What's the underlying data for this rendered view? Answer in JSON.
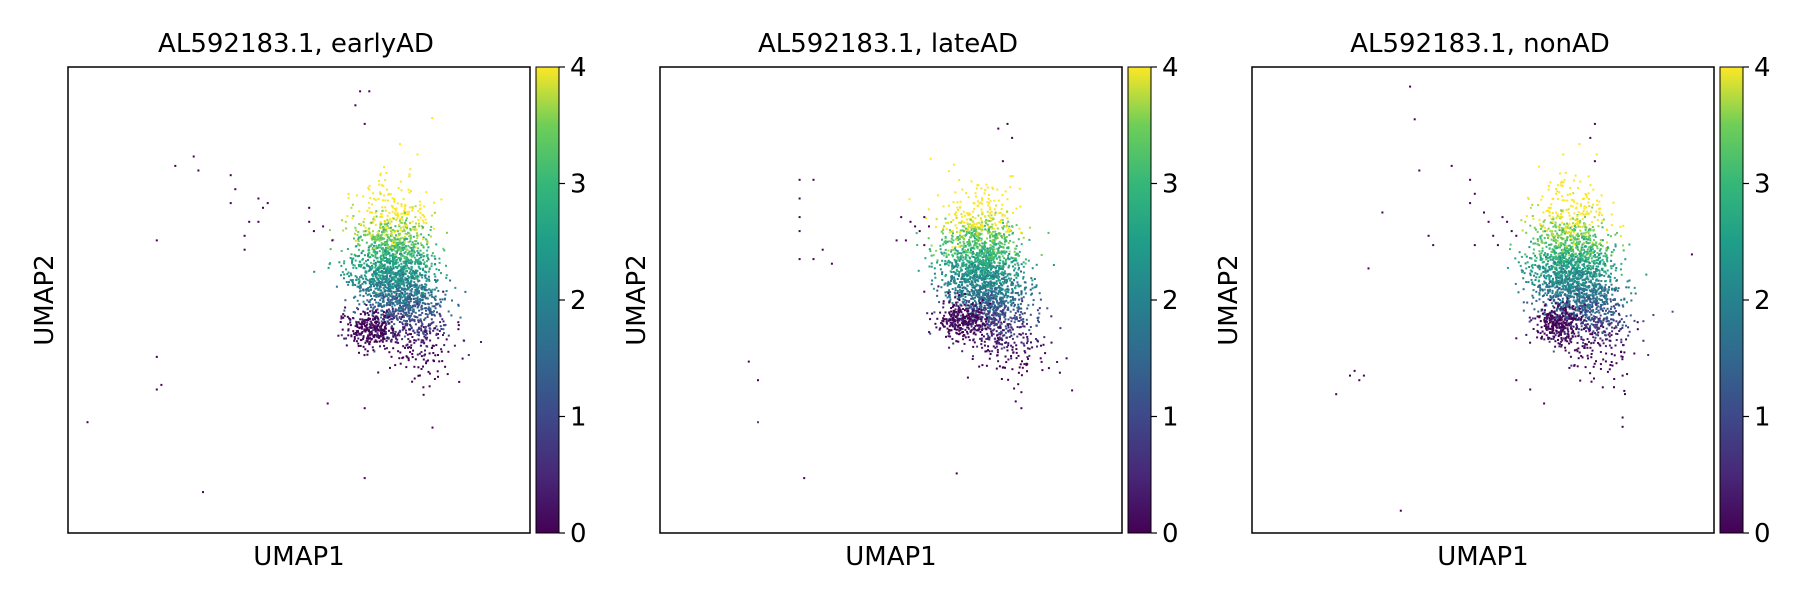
{
  "chart_data": [
    {
      "type": "scatter",
      "title": "AL592183.1, earlyAD",
      "xlabel": "UMAP1",
      "ylabel": "UMAP2",
      "colorbar": {
        "min": 0,
        "max": 4,
        "ticks": [
          "0",
          "1",
          "2",
          "3",
          "4"
        ],
        "colormap": "viridis"
      },
      "main_cluster": {
        "center": [
          0.7,
          0.55
        ],
        "spread": [
          0.045,
          0.08
        ],
        "low_tail": [
          0.62,
          0.42
        ]
      },
      "points": [
        [
          0.04,
          0.24,
          0
        ],
        [
          0.29,
          0.09,
          0
        ],
        [
          0.19,
          0.38,
          0
        ],
        [
          0.19,
          0.63,
          0
        ],
        [
          0.38,
          0.61,
          0
        ],
        [
          0.36,
          0.74,
          0
        ],
        [
          0.35,
          0.71,
          0
        ],
        [
          0.35,
          0.77,
          0
        ],
        [
          0.23,
          0.79,
          0
        ],
        [
          0.27,
          0.81,
          0
        ],
        [
          0.28,
          0.78,
          0
        ],
        [
          0.39,
          0.67,
          0
        ],
        [
          0.41,
          0.67,
          0
        ],
        [
          0.42,
          0.7,
          0
        ],
        [
          0.43,
          0.71,
          0
        ],
        [
          0.41,
          0.72,
          0
        ],
        [
          0.52,
          0.67,
          0
        ],
        [
          0.53,
          0.65,
          0
        ],
        [
          0.55,
          0.66,
          0
        ],
        [
          0.57,
          0.63,
          0
        ],
        [
          0.62,
          0.92,
          0
        ],
        [
          0.63,
          0.95,
          0
        ],
        [
          0.64,
          0.88,
          0
        ],
        [
          0.65,
          0.95,
          0
        ],
        [
          0.81,
          0.52,
          0
        ],
        [
          0.19,
          0.31,
          0
        ],
        [
          0.2,
          0.32,
          0
        ],
        [
          0.56,
          0.28,
          0
        ],
        [
          0.64,
          0.27,
          0
        ],
        [
          0.64,
          0.12,
          0
        ],
        [
          0.38,
          0.64,
          0
        ],
        [
          0.52,
          0.7,
          0
        ]
      ]
    },
    {
      "type": "scatter",
      "title": "AL592183.1, lateAD",
      "xlabel": "UMAP1",
      "ylabel": "UMAP2",
      "colorbar": {
        "min": 0,
        "max": 4,
        "ticks": [
          "0",
          "1",
          "2",
          "3",
          "4"
        ],
        "colormap": "viridis"
      },
      "main_cluster": {
        "center": [
          0.69,
          0.55
        ],
        "spread": [
          0.045,
          0.08
        ],
        "low_tail": [
          0.62,
          0.44
        ]
      },
      "points": [
        [
          0.3,
          0.76,
          0
        ],
        [
          0.33,
          0.76,
          0
        ],
        [
          0.3,
          0.72,
          0
        ],
        [
          0.3,
          0.68,
          0
        ],
        [
          0.3,
          0.65,
          0
        ],
        [
          0.3,
          0.59,
          0
        ],
        [
          0.33,
          0.59,
          0
        ],
        [
          0.35,
          0.61,
          0
        ],
        [
          0.37,
          0.58,
          0
        ],
        [
          0.52,
          0.68,
          0
        ],
        [
          0.53,
          0.63,
          0
        ],
        [
          0.51,
          0.63,
          0
        ],
        [
          0.54,
          0.67,
          0
        ],
        [
          0.55,
          0.66,
          0
        ],
        [
          0.56,
          0.65,
          0
        ],
        [
          0.57,
          0.68,
          0
        ],
        [
          0.58,
          0.66,
          0
        ],
        [
          0.57,
          0.62,
          0
        ],
        [
          0.75,
          0.88,
          0
        ],
        [
          0.76,
          0.85,
          0
        ],
        [
          0.74,
          0.8,
          0
        ],
        [
          0.73,
          0.87,
          0
        ],
        [
          0.19,
          0.37,
          0
        ],
        [
          0.21,
          0.33,
          0
        ],
        [
          0.21,
          0.24,
          1
        ],
        [
          0.31,
          0.12,
          0
        ],
        [
          0.64,
          0.13,
          0
        ],
        [
          0.78,
          0.27,
          0
        ],
        [
          0.57,
          0.52,
          0
        ]
      ]
    },
    {
      "type": "scatter",
      "title": "AL592183.1, nonAD",
      "xlabel": "UMAP1",
      "ylabel": "UMAP2",
      "colorbar": {
        "min": 0,
        "max": 4,
        "ticks": [
          "0",
          "1",
          "2",
          "3",
          "4"
        ],
        "colormap": "viridis"
      },
      "main_cluster": {
        "center": [
          0.69,
          0.55
        ],
        "spread": [
          0.045,
          0.08
        ],
        "low_tail": [
          0.63,
          0.43
        ]
      },
      "points": [
        [
          0.34,
          0.96,
          0
        ],
        [
          0.35,
          0.89,
          0
        ],
        [
          0.36,
          0.78,
          0
        ],
        [
          0.43,
          0.79,
          0
        ],
        [
          0.47,
          0.76,
          0
        ],
        [
          0.48,
          0.73,
          0
        ],
        [
          0.47,
          0.71,
          0
        ],
        [
          0.5,
          0.69,
          0
        ],
        [
          0.51,
          0.67,
          0
        ],
        [
          0.52,
          0.64,
          0
        ],
        [
          0.54,
          0.68,
          0
        ],
        [
          0.55,
          0.67,
          0
        ],
        [
          0.56,
          0.65,
          0
        ],
        [
          0.57,
          0.64,
          0
        ],
        [
          0.53,
          0.62,
          0
        ],
        [
          0.48,
          0.62,
          0
        ],
        [
          0.38,
          0.64,
          0
        ],
        [
          0.39,
          0.62,
          0
        ],
        [
          0.28,
          0.69,
          0
        ],
        [
          0.25,
          0.57,
          0
        ],
        [
          0.74,
          0.88,
          0
        ],
        [
          0.73,
          0.85,
          0
        ],
        [
          0.74,
          0.8,
          0
        ],
        [
          0.95,
          0.6,
          0
        ],
        [
          0.57,
          0.42,
          0
        ],
        [
          0.57,
          0.33,
          0
        ],
        [
          0.6,
          0.31,
          0
        ],
        [
          0.8,
          0.38,
          0
        ],
        [
          0.8,
          0.34,
          0
        ],
        [
          0.8,
          0.25,
          0
        ],
        [
          0.8,
          0.23,
          0
        ],
        [
          0.21,
          0.34,
          0
        ],
        [
          0.22,
          0.35,
          0
        ],
        [
          0.23,
          0.33,
          0
        ],
        [
          0.24,
          0.34,
          0
        ],
        [
          0.18,
          0.3,
          0
        ],
        [
          0.32,
          0.05,
          0
        ],
        [
          0.63,
          0.28,
          0
        ]
      ]
    }
  ]
}
